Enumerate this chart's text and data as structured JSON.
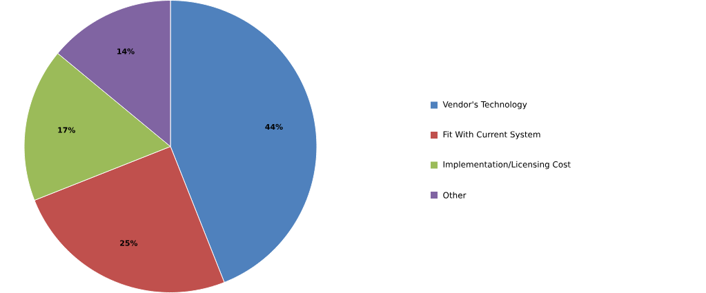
{
  "chart_data": {
    "type": "pie",
    "categories": [
      "Vendor's Technology",
      "Fit With Current System",
      "Implementation/Licensing Cost",
      "Other"
    ],
    "values": [
      44,
      25,
      17,
      14
    ],
    "value_labels": [
      "44%",
      "25%",
      "17%",
      "14%"
    ],
    "colors": [
      "#4f81bd",
      "#c0504d",
      "#9bbb59",
      "#8064a2"
    ],
    "legend": "right"
  }
}
